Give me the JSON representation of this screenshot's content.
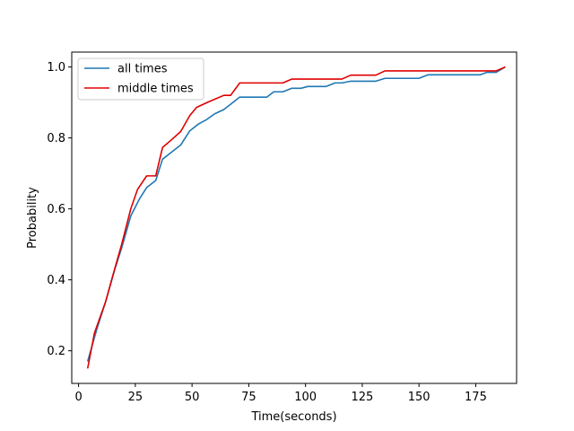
{
  "chart_data": {
    "type": "line",
    "title": "",
    "xlabel": "Time(seconds)",
    "ylabel": "Probability",
    "xlim": [
      -3,
      193
    ],
    "ylim": [
      0.108,
      1.042
    ],
    "xticks": [
      0,
      25,
      50,
      75,
      100,
      125,
      150,
      175
    ],
    "yticks": [
      0.2,
      0.4,
      0.6,
      0.8,
      1.0
    ],
    "xtick_labels": [
      "0",
      "25",
      "50",
      "75",
      "100",
      "125",
      "150",
      "175"
    ],
    "ytick_labels": [
      "0.2",
      "0.4",
      "0.6",
      "0.8",
      "1.0"
    ],
    "grid": false,
    "legend_position": "top-left",
    "series": [
      {
        "name": "all times",
        "color": "#1f77b4",
        "x": [
          4,
          8,
          12,
          16,
          19,
          23,
          27,
          30,
          34,
          37,
          41,
          45,
          49,
          53,
          56,
          60,
          64,
          67,
          71,
          75,
          79,
          83,
          86,
          90,
          94,
          98,
          101,
          105,
          109,
          113,
          116,
          120,
          124,
          128,
          131,
          135,
          139,
          143,
          146,
          150,
          154,
          158,
          162,
          165,
          169,
          173,
          177,
          180,
          184,
          188
        ],
        "y": [
          0.17,
          0.26,
          0.34,
          0.43,
          0.49,
          0.58,
          0.63,
          0.66,
          0.68,
          0.74,
          0.76,
          0.78,
          0.82,
          0.84,
          0.85,
          0.868,
          0.88,
          0.895,
          0.915,
          0.915,
          0.915,
          0.915,
          0.93,
          0.93,
          0.94,
          0.94,
          0.945,
          0.945,
          0.945,
          0.955,
          0.955,
          0.96,
          0.96,
          0.96,
          0.96,
          0.968,
          0.968,
          0.968,
          0.968,
          0.968,
          0.978,
          0.978,
          0.978,
          0.978,
          0.978,
          0.978,
          0.978,
          0.985,
          0.985,
          1.0
        ]
      },
      {
        "name": "middle times",
        "color": "#e00000",
        "x": [
          4,
          7,
          12,
          15,
          19,
          23,
          26,
          30,
          34,
          37,
          41,
          45,
          49,
          52,
          56,
          60,
          64,
          67,
          71,
          75,
          79,
          83,
          86,
          90,
          94,
          98,
          101,
          105,
          109,
          113,
          116,
          120,
          124,
          128,
          131,
          135,
          139,
          143,
          146,
          150,
          154,
          158,
          162,
          165,
          169,
          173,
          177,
          180,
          184,
          188
        ],
        "y": [
          0.15,
          0.25,
          0.34,
          0.41,
          0.5,
          0.6,
          0.655,
          0.693,
          0.693,
          0.773,
          0.795,
          0.818,
          0.863,
          0.886,
          0.898,
          0.909,
          0.92,
          0.92,
          0.955,
          0.955,
          0.955,
          0.955,
          0.955,
          0.955,
          0.966,
          0.966,
          0.966,
          0.966,
          0.966,
          0.966,
          0.966,
          0.977,
          0.977,
          0.977,
          0.977,
          0.989,
          0.989,
          0.989,
          0.989,
          0.989,
          0.989,
          0.989,
          0.989,
          0.989,
          0.989,
          0.989,
          0.989,
          0.989,
          0.989,
          1.0
        ]
      }
    ]
  }
}
